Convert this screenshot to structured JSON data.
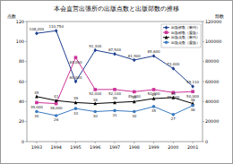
{
  "chart_data": {
    "type": "line",
    "title": "本会直営出張所の出版点数と出版部数の推移",
    "y_label": "点数",
    "y2_label": "部数",
    "categories": [
      "1993",
      "1994",
      "1995",
      "1996",
      "1997",
      "1998",
      "1999",
      "2000",
      "2001"
    ],
    "ylim": [
      0,
      120
    ],
    "yticks": [
      0,
      20,
      40,
      60,
      80,
      100,
      120
    ],
    "y2lim": [
      0,
      120000
    ],
    "y2ticks": [
      0,
      20000,
      40000,
      60000,
      80000,
      100000,
      120000
    ],
    "grid": false,
    "legend": "top-right",
    "data_labels": true,
    "series": [
      {
        "name": "出版部数（新刊）",
        "axis": "y2",
        "color": "#1f3f8f",
        "marker": "diamond",
        "values": [
          108200,
          110750,
          60000,
          91300,
          87500,
          81500,
          85600,
          73000,
          55110
        ],
        "value_labels": [
          "108,200",
          "110,750",
          "60,000",
          "91,300",
          "87,500",
          "81,500",
          "85,600",
          "73,000",
          "55,110"
        ]
      },
      {
        "name": "出版部数（重版）",
        "axis": "y2",
        "color": "#cc3399",
        "marker": "square",
        "values": [
          39000,
          38000,
          84000,
          52000,
          52100,
          49800,
          52000,
          49000,
          50000
        ],
        "value_labels": [
          "39,000",
          "38,000",
          "84,000",
          "52,000",
          "52,100",
          "49,800",
          "52,000",
          "49,000",
          "50,000"
        ]
      },
      {
        "name": "出版点数（新刊）",
        "color": "#000000",
        "marker": "triangle",
        "values": [
          45,
          41,
          39,
          38,
          39,
          40,
          43,
          44,
          38
        ]
      },
      {
        "name": "出版点数（重版）",
        "color": "#3a7ac0",
        "marker": "circle",
        "values": [
          30,
          26,
          33,
          30,
          31,
          30,
          35,
          27,
          36
        ]
      }
    ]
  }
}
